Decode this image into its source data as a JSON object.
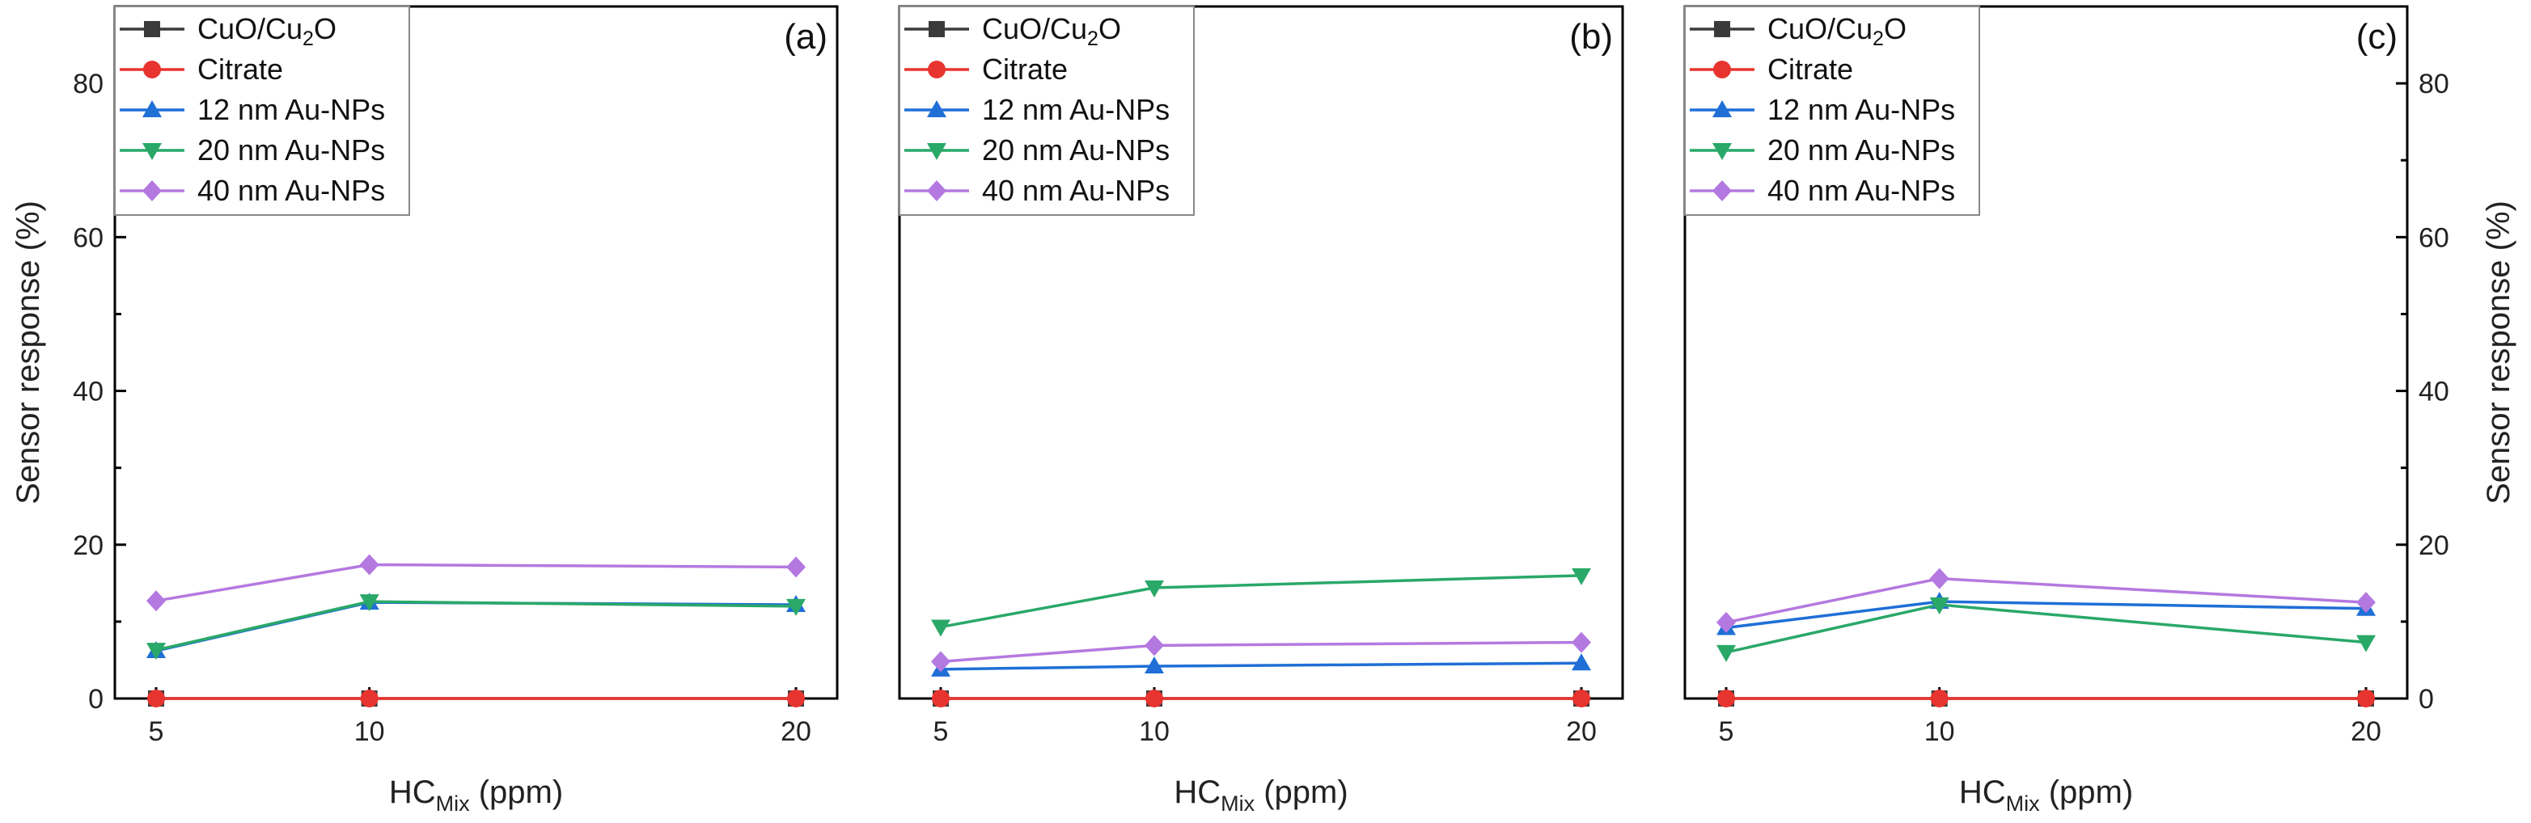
{
  "chart_data": [
    {
      "type": "line",
      "panel_label": "(a)",
      "x": [
        5,
        10,
        20
      ],
      "x_ticks": [
        "5",
        "10",
        "20"
      ],
      "xlabel": {
        "main": "HC",
        "sub": "Mix",
        "rest": " (ppm)"
      },
      "ylabel": "Sensor response (%)",
      "ylim": [
        0,
        90
      ],
      "y_ticks": [
        "0",
        "20",
        "40",
        "60",
        "80"
      ],
      "y_axis_side": "left",
      "series": [
        {
          "name": "CuO/Cu2O",
          "name_main": "CuO/Cu",
          "name_sub": "2",
          "name_rest": "O",
          "color": "#3a3a3a",
          "marker": "square",
          "values": [
            0,
            0,
            0
          ]
        },
        {
          "name": "Citrate",
          "color": "#e8342f",
          "marker": "circle",
          "values": [
            0,
            0,
            0
          ]
        },
        {
          "name": "12 nm Au-NPs",
          "color": "#1f6fd6",
          "marker": "triangle-up",
          "values": [
            6.2,
            12.5,
            12.2
          ]
        },
        {
          "name": "20 nm Au-NPs",
          "color": "#2aa868",
          "marker": "triangle-down",
          "values": [
            6.3,
            12.6,
            12.0
          ]
        },
        {
          "name": "40 nm Au-NPs",
          "color": "#b479e0",
          "marker": "diamond",
          "values": [
            12.7,
            17.4,
            17.1
          ]
        }
      ]
    },
    {
      "type": "line",
      "panel_label": "(b)",
      "x": [
        5,
        10,
        20
      ],
      "x_ticks": [
        "5",
        "10",
        "20"
      ],
      "xlabel": {
        "main": "HC",
        "sub": "Mix",
        "rest": " (ppm)"
      },
      "ylabel": "",
      "ylim": [
        0,
        90
      ],
      "y_ticks": [],
      "y_axis_side": "none",
      "series": [
        {
          "name": "CuO/Cu2O",
          "name_main": "CuO/Cu",
          "name_sub": "2",
          "name_rest": "O",
          "color": "#3a3a3a",
          "marker": "square",
          "values": [
            0,
            0,
            0
          ]
        },
        {
          "name": "Citrate",
          "color": "#e8342f",
          "marker": "circle",
          "values": [
            0,
            0,
            0
          ]
        },
        {
          "name": "12 nm Au-NPs",
          "color": "#1f6fd6",
          "marker": "triangle-up",
          "values": [
            3.8,
            4.2,
            4.6
          ]
        },
        {
          "name": "20 nm Au-NPs",
          "color": "#2aa868",
          "marker": "triangle-down",
          "values": [
            9.3,
            14.4,
            16.0
          ]
        },
        {
          "name": "40 nm Au-NPs",
          "color": "#b479e0",
          "marker": "diamond",
          "values": [
            4.8,
            6.9,
            7.3
          ]
        }
      ]
    },
    {
      "type": "line",
      "panel_label": "(c)",
      "x": [
        5,
        10,
        20
      ],
      "x_ticks": [
        "5",
        "10",
        "20"
      ],
      "xlabel": {
        "main": "HC",
        "sub": "Mix",
        "rest": " (ppm)"
      },
      "ylabel": "Sensor response (%)",
      "ylim": [
        0,
        90
      ],
      "y_ticks": [
        "0",
        "20",
        "40",
        "60",
        "80"
      ],
      "y_axis_side": "right",
      "series": [
        {
          "name": "CuO/Cu2O",
          "name_main": "CuO/Cu",
          "name_sub": "2",
          "name_rest": "O",
          "color": "#3a3a3a",
          "marker": "square",
          "values": [
            0,
            0,
            0
          ]
        },
        {
          "name": "Citrate",
          "color": "#e8342f",
          "marker": "circle",
          "values": [
            0,
            0,
            0
          ]
        },
        {
          "name": "12 nm Au-NPs",
          "color": "#1f6fd6",
          "marker": "triangle-up",
          "values": [
            9.2,
            12.6,
            11.7
          ]
        },
        {
          "name": "20 nm Au-NPs",
          "color": "#2aa868",
          "marker": "triangle-down",
          "values": [
            6.0,
            12.2,
            7.3
          ]
        },
        {
          "name": "40 nm Au-NPs",
          "color": "#b479e0",
          "marker": "diamond",
          "values": [
            9.9,
            15.6,
            12.5
          ]
        }
      ]
    }
  ]
}
